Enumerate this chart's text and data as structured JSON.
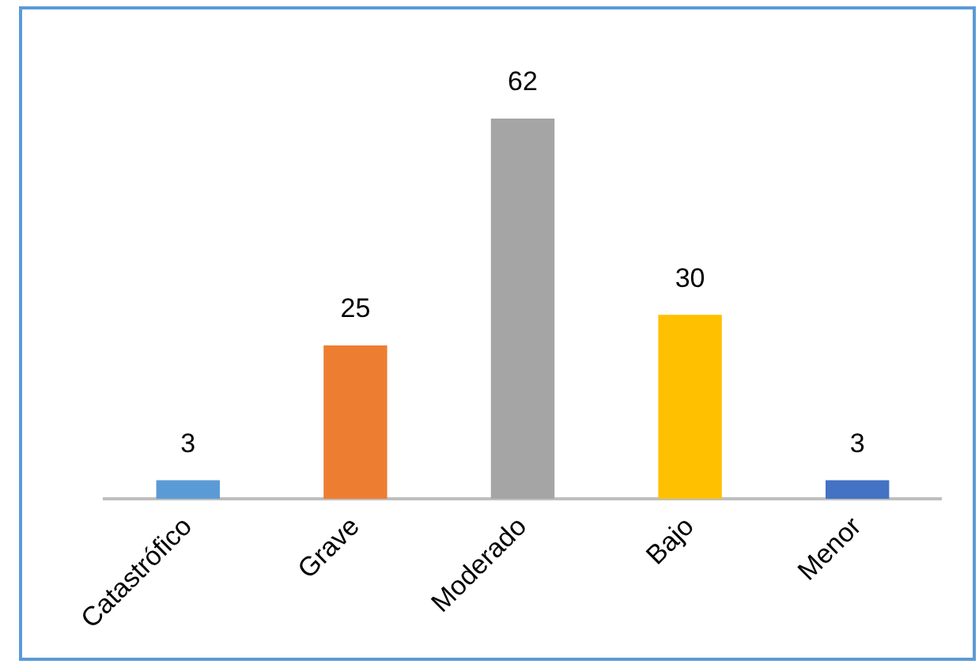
{
  "chart_data": {
    "type": "bar",
    "categories": [
      "Catastrófico",
      "Grave",
      "Moderado",
      "Bajo",
      "Menor"
    ],
    "values": [
      3,
      25,
      62,
      30,
      3
    ],
    "colors": [
      "#5b9bd5",
      "#ed7d31",
      "#a5a5a5",
      "#ffc000",
      "#4472c4"
    ],
    "data_labels": true,
    "grid": false,
    "legend": false
  }
}
